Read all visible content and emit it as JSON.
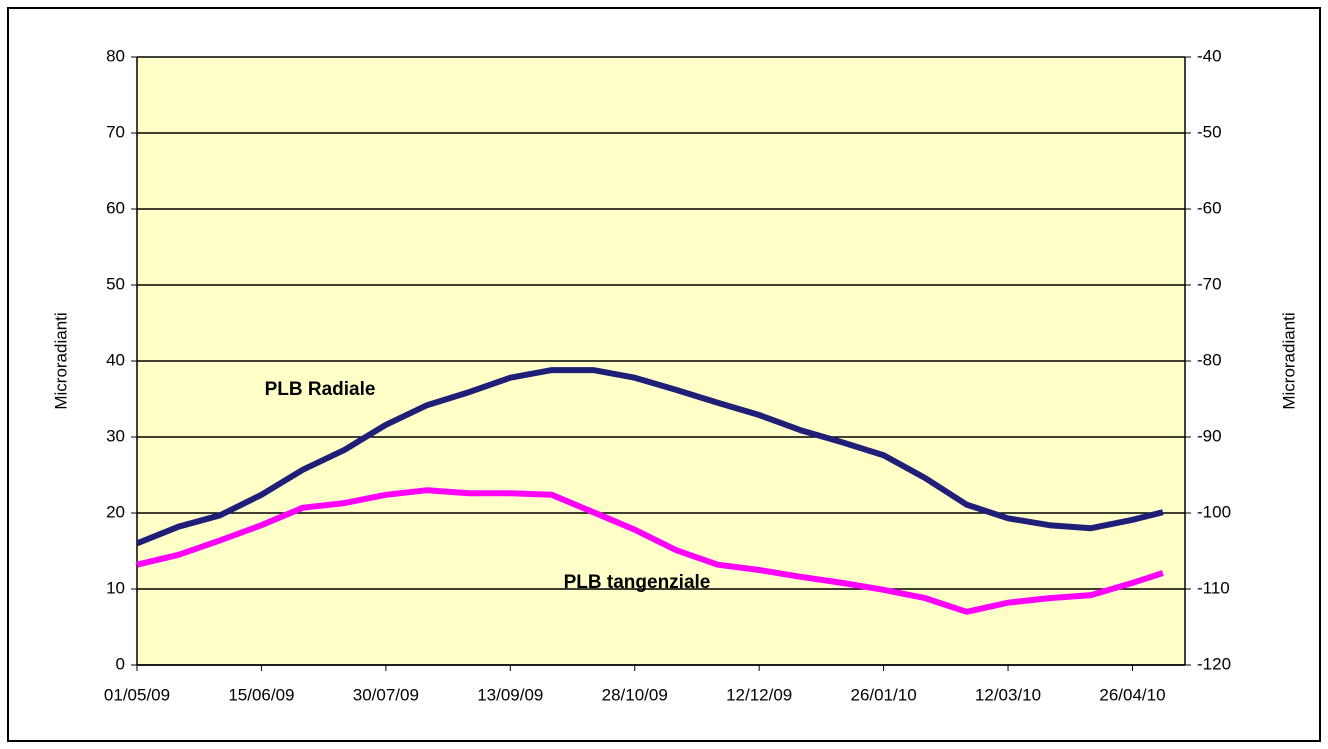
{
  "chart_data": {
    "type": "line",
    "y_label": "Microradianti",
    "y2_label": "Microradianti",
    "x": [
      "01/05/09",
      "16/05/09",
      "31/05/09",
      "15/06/09",
      "30/06/09",
      "15/07/09",
      "30/07/09",
      "14/08/09",
      "29/08/09",
      "13/09/09",
      "28/09/09",
      "13/10/09",
      "28/10/09",
      "12/11/09",
      "27/11/09",
      "12/12/09",
      "27/12/09",
      "11/01/10",
      "26/01/10",
      "10/02/10",
      "25/02/10",
      "12/03/10",
      "27/03/10",
      "11/04/10",
      "26/04/10",
      "07/05/10"
    ],
    "series": [
      {
        "name": "PLB Radiale",
        "color": "#1f1f78",
        "values": [
          16.0,
          18.2,
          19.7,
          22.4,
          25.7,
          28.3,
          31.6,
          34.2,
          35.9,
          37.8,
          38.8,
          38.8,
          37.8,
          36.2,
          34.5,
          32.9,
          30.9,
          29.3,
          27.6,
          24.6,
          21.1,
          19.3,
          18.4,
          18.0,
          19.1,
          20.1
        ]
      },
      {
        "name": "PLB tangenziale",
        "color": "#ff00ff",
        "values": [
          13.2,
          14.5,
          16.4,
          18.4,
          20.7,
          21.3,
          22.4,
          23.0,
          22.6,
          22.6,
          22.4,
          20.1,
          17.8,
          15.1,
          13.2,
          12.5,
          11.6,
          10.8,
          9.9,
          8.8,
          7.0,
          8.2,
          8.8,
          9.2,
          10.8,
          12.1
        ]
      }
    ],
    "xlim": [
      "01/05/09",
      "15/05/10"
    ],
    "xticks": [
      "01/05/09",
      "15/06/09",
      "30/07/09",
      "13/09/09",
      "28/10/09",
      "12/12/09",
      "26/01/10",
      "12/03/10",
      "26/04/10"
    ],
    "ylim": [
      0,
      80
    ],
    "yticks": [
      0,
      10,
      20,
      30,
      40,
      50,
      60,
      70,
      80
    ],
    "y2lim": [
      -120,
      -40
    ],
    "y2ticks": [
      -120,
      -110,
      -100,
      -90,
      -80,
      -70,
      -60,
      -50,
      -40
    ],
    "grid": true,
    "background": "#ffffc8"
  }
}
